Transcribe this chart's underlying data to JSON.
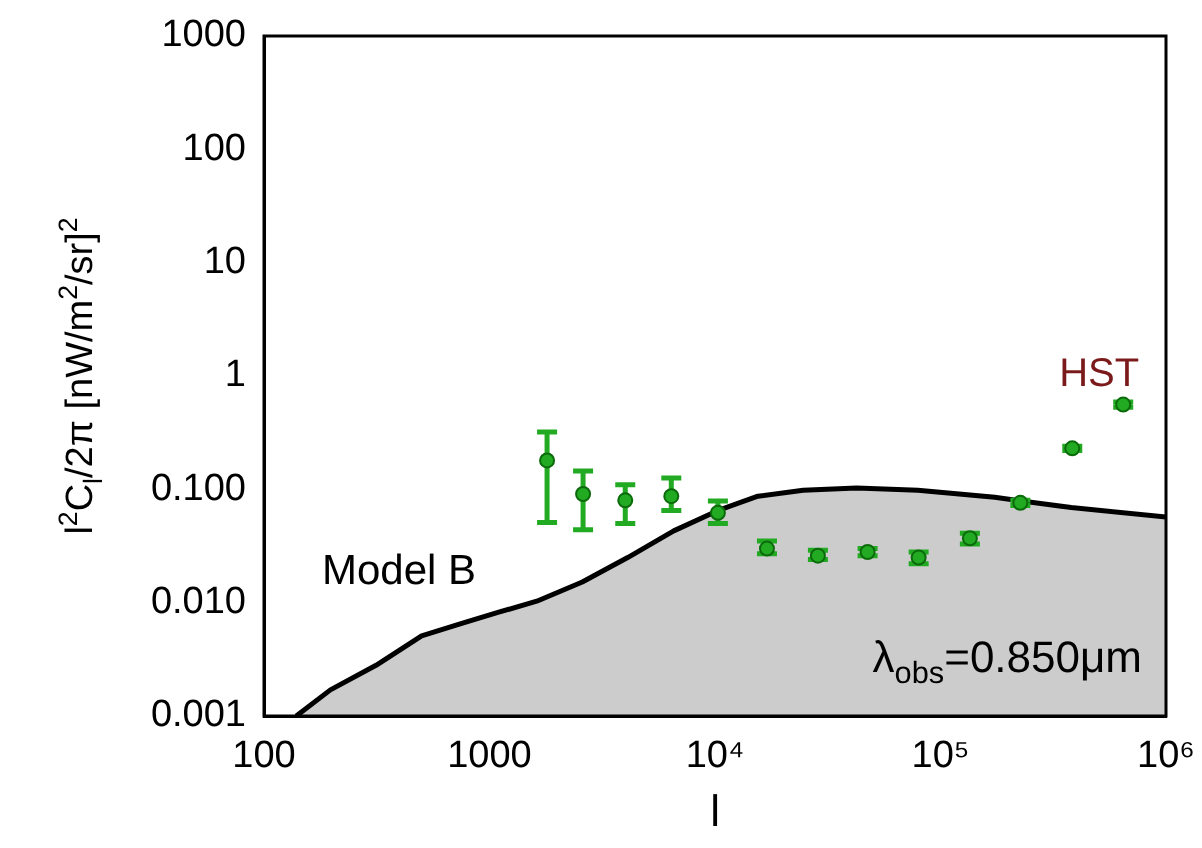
{
  "chart_data": {
    "type": "scatter",
    "xlabel": "l",
    "ylabel": "l$^{2}$C$_{l}$/2π [nW/m$^{2}$/sr]$^{2}$",
    "log": "xy",
    "grid": false,
    "legend": false,
    "xlim": [
      100,
      1000000
    ],
    "ylim": [
      0.001,
      1000
    ],
    "xticks": [
      100,
      1000,
      {
        "value": 10000,
        "label": "10⁴"
      },
      {
        "value": 100000,
        "label": "10⁵"
      },
      {
        "value": 1000000,
        "label": "10⁶"
      }
    ],
    "yticks": [
      {
        "value": 0.001,
        "label": "0.001"
      },
      {
        "value": 0.01,
        "label": "0.010"
      },
      {
        "value": 0.1,
        "label": "0.100"
      },
      1,
      10,
      100,
      1000
    ],
    "annotations": [
      "λ$_{obs}$=0.850μm"
    ],
    "series": [
      {
        "name": "Model B",
        "type": "area",
        "marker": "none",
        "color": "#000000",
        "x": [
          139,
          197,
          314,
          500,
          741,
          1090,
          1620,
          2580,
          4100,
          6560,
          10500,
          15500,
          24600,
          42500,
          79400,
          174000,
          380000,
          1000000
        ],
        "values": [
          0.001,
          0.0017,
          0.0028,
          0.0051,
          0.0065,
          0.0082,
          0.0103,
          0.0152,
          0.025,
          0.043,
          0.066,
          0.087,
          0.098,
          0.103,
          0.098,
          0.085,
          0.069,
          0.057
        ]
      },
      {
        "name": "HST",
        "marker": "circle",
        "color": "#22aa22",
        "x": [
          1800,
          2600,
          4000,
          6400,
          10300,
          17000,
          28600,
          47500,
          80000,
          135000,
          226000,
          384000,
          646000
        ],
        "values": [
          0.18,
          0.091,
          0.08,
          0.087,
          0.062,
          0.03,
          0.026,
          0.028,
          0.025,
          0.037,
          0.076,
          0.23,
          0.56
        ],
        "errors": [
          [
            0.051,
            0.32
          ],
          [
            0.044,
            0.145
          ],
          [
            0.05,
            0.11
          ],
          [
            0.065,
            0.126
          ],
          [
            0.05,
            0.079
          ],
          [
            0.027,
            0.035
          ],
          [
            0.024,
            0.029
          ],
          [
            0.026,
            0.03
          ],
          [
            0.022,
            0.028
          ],
          [
            0.033,
            0.041
          ],
          [
            0.072,
            0.08
          ],
          [
            0.22,
            0.24
          ],
          [
            0.53,
            0.59
          ]
        ]
      }
    ]
  }
}
